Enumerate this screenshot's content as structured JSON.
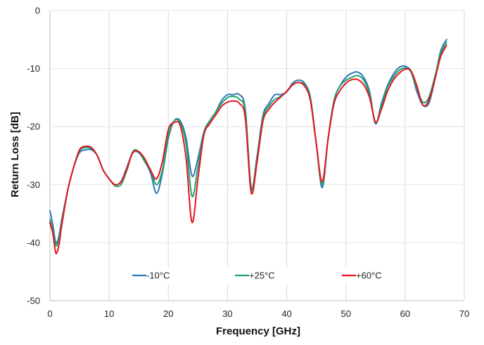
{
  "chart_data": {
    "type": "line",
    "xlabel": "Frequency [GHz]",
    "ylabel": "Return Loss [dB]",
    "xlim": [
      0,
      70
    ],
    "ylim": [
      -50,
      0
    ],
    "xticks": [
      0,
      10,
      20,
      30,
      40,
      50,
      60,
      70
    ],
    "yticks": [
      0,
      -10,
      -20,
      -30,
      -40,
      -50
    ],
    "grid": "vertical",
    "legend_position": "bottom",
    "series": [
      {
        "name": "-10°C",
        "color": "#2e75b6",
        "points": [
          [
            0,
            -34.5
          ],
          [
            0.5,
            -37
          ],
          [
            1,
            -40
          ],
          [
            1.5,
            -39
          ],
          [
            2,
            -36
          ],
          [
            3,
            -31
          ],
          [
            4,
            -27
          ],
          [
            5,
            -24.5
          ],
          [
            6,
            -24
          ],
          [
            7,
            -24
          ],
          [
            8,
            -25
          ],
          [
            9,
            -27.5
          ],
          [
            10,
            -29
          ],
          [
            11,
            -30
          ],
          [
            12,
            -29.5
          ],
          [
            13,
            -27
          ],
          [
            14,
            -24.5
          ],
          [
            15,
            -24.5
          ],
          [
            16,
            -26
          ],
          [
            17,
            -28
          ],
          [
            18,
            -31.5
          ],
          [
            19,
            -28
          ],
          [
            20,
            -22
          ],
          [
            21,
            -19
          ],
          [
            22,
            -19
          ],
          [
            23,
            -22
          ],
          [
            24,
            -28.5
          ],
          [
            25,
            -25.5
          ],
          [
            26,
            -21
          ],
          [
            27,
            -19
          ],
          [
            28,
            -17.5
          ],
          [
            29,
            -15.5
          ],
          [
            30,
            -14.5
          ],
          [
            31,
            -14.5
          ],
          [
            32,
            -14.5
          ],
          [
            33,
            -17
          ],
          [
            34,
            -30.5
          ],
          [
            35,
            -25
          ],
          [
            36,
            -18
          ],
          [
            37,
            -16
          ],
          [
            38,
            -14.5
          ],
          [
            39,
            -14.5
          ],
          [
            40,
            -14
          ],
          [
            41,
            -12.5
          ],
          [
            42,
            -12
          ],
          [
            43,
            -12.5
          ],
          [
            44,
            -15
          ],
          [
            45,
            -23
          ],
          [
            46,
            -30.5
          ],
          [
            47,
            -22
          ],
          [
            48,
            -15.5
          ],
          [
            49,
            -13
          ],
          [
            50,
            -11.5
          ],
          [
            51,
            -10.8
          ],
          [
            52,
            -10.6
          ],
          [
            53,
            -11.5
          ],
          [
            54,
            -14
          ],
          [
            55,
            -19.5
          ],
          [
            56,
            -16
          ],
          [
            57,
            -13
          ],
          [
            58,
            -11
          ],
          [
            59,
            -9.8
          ],
          [
            60,
            -9.6
          ],
          [
            61,
            -10.5
          ],
          [
            62,
            -14
          ],
          [
            63,
            -16.3
          ],
          [
            64,
            -16
          ],
          [
            65,
            -12
          ],
          [
            66,
            -7
          ],
          [
            67,
            -5
          ]
        ]
      },
      {
        "name": "+25°C",
        "color": "#1aa36b",
        "points": [
          [
            0,
            -36
          ],
          [
            0.5,
            -38
          ],
          [
            1,
            -40.5
          ],
          [
            1.5,
            -39.5
          ],
          [
            2,
            -36.5
          ],
          [
            3,
            -31
          ],
          [
            4,
            -27
          ],
          [
            5,
            -24.2
          ],
          [
            6,
            -23.6
          ],
          [
            7,
            -23.8
          ],
          [
            8,
            -25
          ],
          [
            9,
            -27.5
          ],
          [
            10,
            -29
          ],
          [
            11,
            -30.2
          ],
          [
            12,
            -30
          ],
          [
            13,
            -27.5
          ],
          [
            14,
            -24.3
          ],
          [
            15,
            -24.3
          ],
          [
            16,
            -26
          ],
          [
            17,
            -27.5
          ],
          [
            18,
            -30
          ],
          [
            19,
            -27.5
          ],
          [
            20,
            -21.5
          ],
          [
            21,
            -19
          ],
          [
            22,
            -19.3
          ],
          [
            23,
            -23
          ],
          [
            24,
            -32
          ],
          [
            25,
            -27
          ],
          [
            26,
            -21
          ],
          [
            27,
            -19
          ],
          [
            28,
            -17.5
          ],
          [
            29,
            -16
          ],
          [
            30,
            -15
          ],
          [
            31,
            -14.8
          ],
          [
            32,
            -15.3
          ],
          [
            33,
            -17.5
          ],
          [
            34,
            -30.8
          ],
          [
            35,
            -25.5
          ],
          [
            36,
            -18.5
          ],
          [
            37,
            -16.5
          ],
          [
            38,
            -15.3
          ],
          [
            39,
            -14.8
          ],
          [
            40,
            -14
          ],
          [
            41,
            -12.8
          ],
          [
            42,
            -12.4
          ],
          [
            43,
            -12.8
          ],
          [
            44,
            -15
          ],
          [
            45,
            -23
          ],
          [
            46,
            -30
          ],
          [
            47,
            -22
          ],
          [
            48,
            -15.5
          ],
          [
            49,
            -13
          ],
          [
            50,
            -12
          ],
          [
            51,
            -11.5
          ],
          [
            52,
            -11.2
          ],
          [
            53,
            -12
          ],
          [
            54,
            -14.5
          ],
          [
            55,
            -19.3
          ],
          [
            56,
            -16.5
          ],
          [
            57,
            -13.3
          ],
          [
            58,
            -11.5
          ],
          [
            59,
            -10.3
          ],
          [
            60,
            -9.9
          ],
          [
            61,
            -10.6
          ],
          [
            62,
            -13.5
          ],
          [
            63,
            -15.8
          ],
          [
            64,
            -15
          ],
          [
            65,
            -11.5
          ],
          [
            66,
            -7.5
          ],
          [
            67,
            -5.5
          ]
        ]
      },
      {
        "name": "+60°C",
        "color": "#e8141b",
        "points": [
          [
            0,
            -36.5
          ],
          [
            0.5,
            -38.5
          ],
          [
            1,
            -41.8
          ],
          [
            1.5,
            -40.5
          ],
          [
            2,
            -37
          ],
          [
            3,
            -31
          ],
          [
            4,
            -27
          ],
          [
            5,
            -24
          ],
          [
            6,
            -23.4
          ],
          [
            7,
            -23.6
          ],
          [
            8,
            -25
          ],
          [
            9,
            -27.5
          ],
          [
            10,
            -29
          ],
          [
            11,
            -30
          ],
          [
            12,
            -29.5
          ],
          [
            13,
            -27.3
          ],
          [
            14,
            -24.5
          ],
          [
            15,
            -24.3
          ],
          [
            16,
            -25.5
          ],
          [
            17,
            -27.5
          ],
          [
            18,
            -29
          ],
          [
            19,
            -26
          ],
          [
            20,
            -20.5
          ],
          [
            21,
            -19.3
          ],
          [
            22,
            -19.8
          ],
          [
            23,
            -25.5
          ],
          [
            24,
            -36.5
          ],
          [
            25,
            -29
          ],
          [
            26,
            -21.5
          ],
          [
            27,
            -19.5
          ],
          [
            28,
            -18
          ],
          [
            29,
            -16.5
          ],
          [
            30,
            -15.8
          ],
          [
            31,
            -15.6
          ],
          [
            32,
            -16
          ],
          [
            33,
            -18.5
          ],
          [
            34,
            -31.4
          ],
          [
            35,
            -26
          ],
          [
            36,
            -19
          ],
          [
            37,
            -17
          ],
          [
            38,
            -15.8
          ],
          [
            39,
            -14.9
          ],
          [
            40,
            -13.9
          ],
          [
            41,
            -12.8
          ],
          [
            42,
            -12.4
          ],
          [
            43,
            -13
          ],
          [
            44,
            -15.5
          ],
          [
            45,
            -23
          ],
          [
            46,
            -29.5
          ],
          [
            47,
            -22
          ],
          [
            48,
            -16
          ],
          [
            49,
            -13.8
          ],
          [
            50,
            -12.5
          ],
          [
            51,
            -11.9
          ],
          [
            52,
            -11.9
          ],
          [
            53,
            -12.8
          ],
          [
            54,
            -15
          ],
          [
            55,
            -19.2
          ],
          [
            56,
            -17
          ],
          [
            57,
            -14
          ],
          [
            58,
            -12
          ],
          [
            59,
            -10.8
          ],
          [
            60,
            -10.1
          ],
          [
            61,
            -10.4
          ],
          [
            62,
            -13
          ],
          [
            63,
            -16.3
          ],
          [
            64,
            -15.5
          ],
          [
            65,
            -12
          ],
          [
            66,
            -8
          ],
          [
            67,
            -6
          ]
        ]
      }
    ]
  }
}
